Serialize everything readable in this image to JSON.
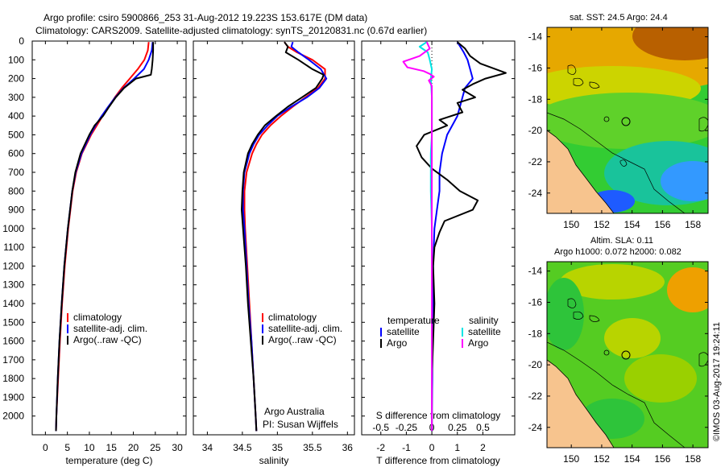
{
  "header": {
    "line1": "Argo profile: csiro 5900866_253 31-Aug-2012 19.223S 153.617E (DM data)",
    "line2": "Climatology: CARS2009. Satellite-adjusted climatology: synTS_20120831.nc (0.67d earlier)"
  },
  "colors": {
    "climatology": "#ff0000",
    "satellite": "#0000ff",
    "argo": "#000000",
    "sal_satellite": "#00e5e5",
    "sal_argo": "#ff00ff"
  },
  "chart_data": [
    {
      "id": "temperature",
      "type": "line",
      "xlabel": "temperature (deg C)",
      "ylabel": "",
      "xlim": [
        -3,
        32
      ],
      "ylim": [
        2100,
        0
      ],
      "xticks": [
        0,
        5,
        10,
        15,
        20,
        25,
        30
      ],
      "xtick_labels": [
        "0",
        "5",
        "10",
        "15",
        "20",
        "25",
        "30"
      ],
      "yticks": [
        0,
        100,
        200,
        300,
        400,
        500,
        600,
        700,
        800,
        900,
        1000,
        1100,
        1200,
        1300,
        1400,
        1500,
        1600,
        1700,
        1800,
        1900,
        2000
      ],
      "ytick_labels": [
        "0",
        "100",
        "200",
        "300",
        "400",
        "500",
        "600",
        "700",
        "800",
        "900",
        "1000",
        "1100",
        "1200",
        "1300",
        "1400",
        "1500",
        "1600",
        "1700",
        "1800",
        "1900",
        "2000"
      ],
      "legend": [
        "climatology",
        "satellite-adj. clim.",
        "Argo(..raw -QC)"
      ],
      "series": [
        {
          "name": "climatology",
          "color": "#ff0000",
          "depth": [
            5,
            50,
            100,
            150,
            200,
            250,
            300,
            350,
            400,
            450,
            500,
            600,
            700,
            800,
            1000,
            1200,
            1400,
            1600,
            1800,
            2000,
            2080
          ],
          "values": [
            23.5,
            23.3,
            22.5,
            21.0,
            19.2,
            17.4,
            15.8,
            14.4,
            13.0,
            11.7,
            10.4,
            8.3,
            7.0,
            6.2,
            5.2,
            4.4,
            3.8,
            3.3,
            2.9,
            2.5,
            2.4
          ]
        },
        {
          "name": "satellite-adj. clim.",
          "color": "#0000ff",
          "depth": [
            5,
            50,
            100,
            150,
            200,
            250,
            300,
            350,
            400,
            450,
            500,
            600,
            700,
            800,
            1000,
            1200,
            1400,
            1600,
            1800,
            2000,
            2080
          ],
          "values": [
            24.4,
            24.2,
            23.5,
            22.4,
            20.2,
            17.8,
            15.9,
            14.3,
            12.8,
            11.4,
            10.2,
            8.2,
            6.9,
            6.1,
            5.1,
            4.3,
            3.7,
            3.2,
            2.8,
            2.5,
            2.4
          ]
        },
        {
          "name": "Argo(..raw -QC)",
          "color": "#000000",
          "depth": [
            5,
            50,
            100,
            150,
            180,
            200,
            250,
            300,
            350,
            400,
            450,
            500,
            600,
            700,
            800,
            1000,
            1200,
            1400,
            1600,
            1800,
            2000,
            2080
          ],
          "values": [
            24.5,
            24.5,
            24.4,
            24.2,
            24.0,
            20.6,
            17.9,
            16.0,
            14.5,
            13.1,
            11.2,
            10.0,
            8.0,
            6.8,
            6.1,
            5.1,
            4.3,
            3.7,
            3.2,
            2.8,
            2.5,
            2.4
          ]
        }
      ]
    },
    {
      "id": "salinity",
      "type": "line",
      "xlabel": "salinity",
      "ylabel": "",
      "xlim": [
        33.8,
        36.1
      ],
      "ylim": [
        2100,
        0
      ],
      "xticks": [
        34,
        34.5,
        35,
        35.5,
        36
      ],
      "xtick_labels": [
        "34",
        "34.5",
        "35",
        "35.5",
        "36"
      ],
      "legend": [
        "climatology",
        "satellite-adj. clim.",
        "Argo(..raw -QC)"
      ],
      "annotation": [
        "Argo Australia",
        "PI: Susan Wijffels"
      ],
      "series": [
        {
          "name": "climatology",
          "color": "#ff0000",
          "depth": [
            5,
            30,
            60,
            100,
            150,
            200,
            250,
            300,
            350,
            400,
            450,
            500,
            550,
            600,
            700,
            800,
            900,
            1000,
            1200,
            1400,
            1600,
            1800,
            2000,
            2080
          ],
          "values": [
            35.1,
            35.15,
            35.28,
            35.5,
            35.68,
            35.68,
            35.58,
            35.4,
            35.22,
            35.05,
            34.9,
            34.78,
            34.7,
            34.64,
            34.56,
            34.53,
            34.53,
            34.54,
            34.57,
            34.6,
            34.63,
            34.66,
            34.69,
            34.7
          ]
        },
        {
          "name": "satellite-adj. clim.",
          "color": "#0000ff",
          "depth": [
            5,
            30,
            60,
            100,
            150,
            200,
            250,
            300,
            350,
            400,
            450,
            500,
            550,
            600,
            700,
            800,
            900,
            1000,
            1200,
            1400,
            1600,
            1800,
            2000,
            2080
          ],
          "values": [
            35.22,
            35.2,
            35.3,
            35.45,
            35.62,
            35.7,
            35.6,
            35.42,
            35.2,
            35.0,
            34.86,
            34.74,
            34.66,
            34.6,
            34.53,
            34.51,
            34.51,
            34.53,
            34.56,
            34.59,
            34.63,
            34.66,
            34.69,
            34.7
          ]
        },
        {
          "name": "Argo(..raw -QC)",
          "color": "#000000",
          "depth": [
            5,
            30,
            60,
            100,
            150,
            180,
            200,
            250,
            300,
            350,
            400,
            450,
            500,
            550,
            600,
            700,
            800,
            900,
            1000,
            1200,
            1400,
            1600,
            1800,
            2000,
            2080
          ],
          "values": [
            35.1,
            35.15,
            35.12,
            35.3,
            35.5,
            35.66,
            35.64,
            35.55,
            35.35,
            35.15,
            34.98,
            34.82,
            34.72,
            34.64,
            34.58,
            34.52,
            34.5,
            34.49,
            34.51,
            34.55,
            34.58,
            34.62,
            34.66,
            34.69,
            34.7
          ]
        }
      ]
    },
    {
      "id": "difference",
      "type": "line",
      "xlabel": "T difference from climatology",
      "xlabel_top": "S difference from climatology",
      "ylabel": "",
      "xlim": [
        -2.75,
        3.25
      ],
      "ylim": [
        2100,
        0
      ],
      "xticks": [
        -2,
        -1,
        0,
        1,
        2
      ],
      "xtick_labels": [
        "-2",
        "-1",
        "0",
        "1",
        "2"
      ],
      "xticks_s": [
        -0.5,
        -0.25,
        0,
        0.25,
        0.5
      ],
      "xtick_labels_s": [
        "-0.5",
        "-0.25",
        "0",
        "0.25",
        "0.5"
      ],
      "legend_titles": [
        "temperature",
        "salinity"
      ],
      "legend": [
        "satellite",
        "Argo",
        "satellite",
        "Argo"
      ],
      "series": [
        {
          "name": "temperature satellite",
          "color": "#0000ff",
          "depth": [
            5,
            60,
            100,
            150,
            200,
            250,
            300,
            400,
            500,
            600,
            700,
            800,
            900,
            1000,
            1200,
            1400,
            1600,
            1800,
            2000,
            2080
          ],
          "values": [
            1.0,
            1.25,
            1.4,
            1.5,
            1.6,
            1.3,
            1.2,
            1.0,
            0.6,
            0.4,
            0.3,
            0.3,
            0.2,
            0.1,
            0.05,
            0.05,
            0.02,
            0.02,
            0.0,
            0.0
          ]
        },
        {
          "name": "temperature Argo",
          "color": "#000000",
          "depth": [
            5,
            40,
            80,
            120,
            170,
            200,
            230,
            260,
            300,
            330,
            380,
            420,
            450,
            500,
            560,
            620,
            680,
            740,
            800,
            850,
            900,
            960,
            1020,
            1100,
            1200,
            1400,
            1600,
            1800,
            2000,
            2080
          ],
          "values": [
            1.0,
            1.3,
            1.5,
            1.9,
            2.9,
            2.1,
            1.6,
            1.2,
            1.7,
            1.0,
            1.2,
            0.3,
            0.6,
            -0.3,
            -0.6,
            -0.4,
            0.0,
            0.6,
            1.1,
            1.8,
            1.6,
            0.5,
            0.3,
            0.1,
            0.05,
            0.1,
            0.05,
            0.0,
            0.0,
            0.0
          ]
        },
        {
          "name": "salinity satellite",
          "color": "#00e5e5",
          "depth": [
            5,
            30,
            60,
            100,
            150,
            200,
            300,
            400,
            500,
            600,
            700,
            800,
            1000,
            1200,
            1400,
            1600,
            1800,
            2000,
            2080
          ],
          "values": [
            -0.05,
            -0.12,
            -0.04,
            -0.02,
            0.0,
            -0.01,
            0.0,
            0.0,
            0.0,
            -0.01,
            -0.01,
            -0.01,
            0.0,
            0.0,
            0.0,
            0.0,
            0.0,
            0.0,
            0.0
          ]
        },
        {
          "name": "salinity Argo",
          "color": "#ff00ff",
          "depth": [
            5,
            40,
            80,
            110,
            140,
            160,
            175,
            190,
            210,
            240,
            300,
            400,
            500,
            600,
            700,
            800,
            1000,
            1200,
            1400,
            1600,
            1800,
            2000,
            2080
          ],
          "values": [
            -0.05,
            -0.02,
            -0.12,
            -0.28,
            -0.24,
            -0.08,
            -0.02,
            0.02,
            -0.03,
            0.0,
            0.0,
            0.0,
            0.0,
            0.0,
            0.0,
            0.0,
            0.0,
            0.0,
            0.0,
            0.0,
            0.0,
            0.0,
            0.0
          ]
        }
      ]
    }
  ],
  "maps": {
    "sst_title": "sat. SST: 24.5 Argo: 24.4",
    "sla_title_1": "Altim. SLA: 0.11",
    "sla_title_2": "Argo h1000: 0.072 h2000: 0.082",
    "y_tick_labels": [
      "-14",
      "-16",
      "-18",
      "-20",
      "-22",
      "-24"
    ],
    "x_tick_labels": [
      "150",
      "152",
      "154",
      "156",
      "158"
    ],
    "float_position": [
      153.617,
      -19.223
    ]
  },
  "footer": {
    "credit": "©IMOS 03-Aug-2017 19:24:11"
  }
}
